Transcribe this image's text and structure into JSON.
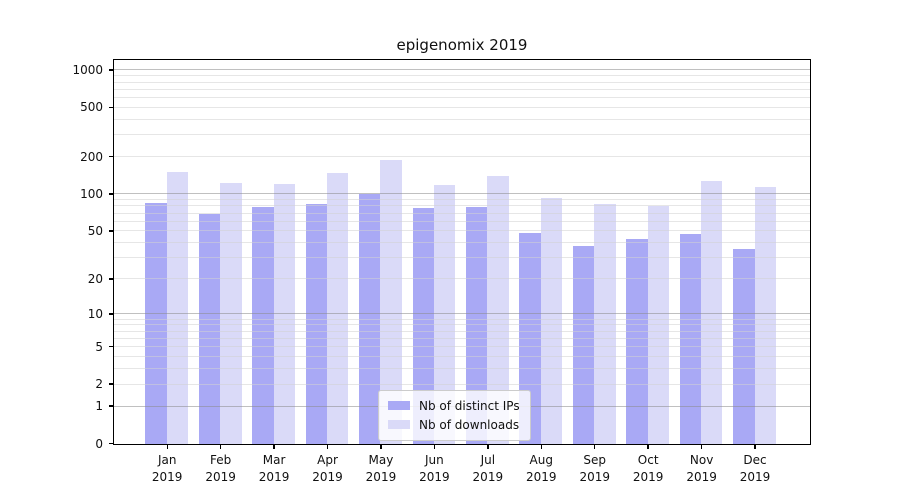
{
  "figure": {
    "title": "epigenomix 2019",
    "background_color": "#ffffff",
    "axis_frame_color": "#000000"
  },
  "chart_data": {
    "type": "bar",
    "title": "epigenomix 2019",
    "categories": [
      "Jan",
      "Feb",
      "Mar",
      "Apr",
      "May",
      "Jun",
      "Jul",
      "Aug",
      "Sep",
      "Oct",
      "Nov",
      "Dec"
    ],
    "category_year": "2019",
    "series": [
      {
        "name": "Nb of distinct IPs",
        "color": "#a9a9f5",
        "values": [
          86,
          69,
          79,
          83,
          101,
          78,
          79,
          49,
          38,
          43,
          48,
          36
        ]
      },
      {
        "name": "Nb of downloads",
        "color": "#dadaf8",
        "values": [
          152,
          123,
          122,
          149,
          190,
          119,
          140,
          93,
          84,
          80,
          128,
          116
        ]
      }
    ],
    "y_axis": {
      "scale": "log1p",
      "ticks": [
        0,
        1,
        2,
        5,
        10,
        20,
        50,
        100,
        200,
        500,
        1000
      ],
      "major_gridlines": [
        1,
        10,
        100,
        1000
      ],
      "minor_gridlines": [
        2,
        3,
        4,
        5,
        6,
        7,
        8,
        9,
        20,
        30,
        40,
        50,
        60,
        70,
        80,
        90,
        200,
        300,
        400,
        500,
        600,
        700,
        800,
        900
      ],
      "ylim": [
        0,
        1192
      ]
    },
    "xlabel": "",
    "ylabel": "",
    "grid": true,
    "legend_position": "lower center"
  },
  "legend": {
    "items": [
      {
        "label": "Nb of distinct IPs",
        "color": "#a9a9f5"
      },
      {
        "label": "Nb of downloads",
        "color": "#dadaf8"
      }
    ]
  }
}
